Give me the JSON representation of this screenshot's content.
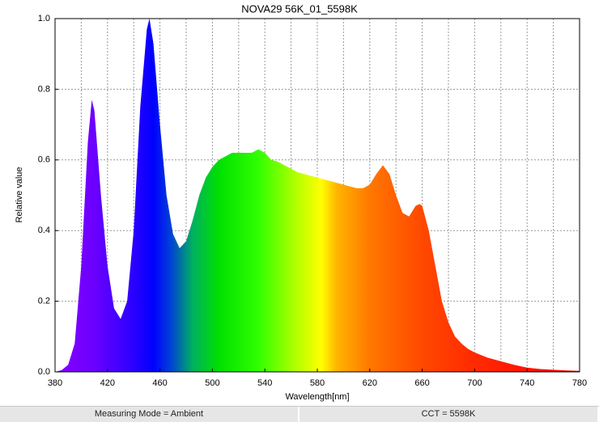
{
  "chart_data": {
    "type": "area",
    "title": "NOVA29 56K_01_5598K",
    "x_label": "Wavelength[nm]",
    "y_label": "Relative value",
    "x": [
      380,
      385,
      390,
      395,
      400,
      405,
      408,
      410,
      415,
      420,
      425,
      430,
      435,
      440,
      445,
      450,
      452,
      455,
      460,
      465,
      470,
      475,
      480,
      485,
      490,
      495,
      500,
      505,
      510,
      515,
      520,
      525,
      530,
      535,
      540,
      545,
      550,
      555,
      560,
      565,
      570,
      575,
      580,
      585,
      590,
      595,
      600,
      605,
      610,
      615,
      620,
      625,
      630,
      635,
      640,
      645,
      650,
      655,
      658,
      660,
      665,
      670,
      675,
      680,
      685,
      690,
      695,
      700,
      710,
      720,
      730,
      740,
      750,
      760,
      770,
      780
    ],
    "values": [
      0,
      0.005,
      0.02,
      0.08,
      0.3,
      0.65,
      0.77,
      0.74,
      0.5,
      0.3,
      0.18,
      0.15,
      0.2,
      0.4,
      0.75,
      0.97,
      1.0,
      0.93,
      0.7,
      0.5,
      0.39,
      0.35,
      0.37,
      0.43,
      0.5,
      0.55,
      0.58,
      0.6,
      0.61,
      0.62,
      0.62,
      0.62,
      0.62,
      0.63,
      0.62,
      0.6,
      0.595,
      0.585,
      0.575,
      0.565,
      0.56,
      0.555,
      0.55,
      0.545,
      0.54,
      0.535,
      0.53,
      0.525,
      0.52,
      0.52,
      0.53,
      0.56,
      0.585,
      0.56,
      0.5,
      0.45,
      0.44,
      0.47,
      0.475,
      0.47,
      0.4,
      0.3,
      0.2,
      0.14,
      0.1,
      0.08,
      0.065,
      0.055,
      0.04,
      0.03,
      0.02,
      0.012,
      0.008,
      0.006,
      0.004,
      0.003
    ],
    "xlim": [
      380,
      780
    ],
    "xticks": [
      380,
      420,
      460,
      500,
      540,
      580,
      620,
      660,
      700,
      740,
      780
    ],
    "x_minor_ticks": [
      400,
      440,
      480,
      520,
      560,
      600,
      640,
      680,
      720,
      760
    ],
    "ylim": [
      0,
      1
    ],
    "yticks": [
      {
        "value": 0,
        "label": "0.0"
      },
      0.2,
      0.4,
      0.6,
      0.8,
      {
        "value": 1,
        "label": "1.0"
      }
    ],
    "grid": true
  },
  "footer": {
    "left": "Measuring Mode = Ambient",
    "right": "CCT = 5598K"
  }
}
